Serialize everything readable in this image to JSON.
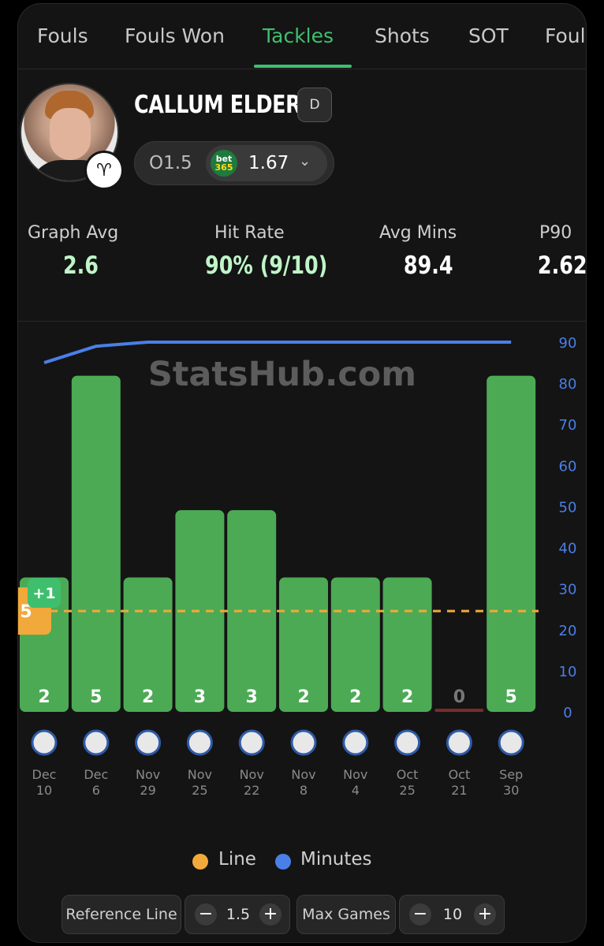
{
  "tabs": [
    {
      "label": "Fouls",
      "active": false
    },
    {
      "label": "Fouls Won",
      "active": false
    },
    {
      "label": "Tackles",
      "active": true
    },
    {
      "label": "Shots",
      "active": false
    },
    {
      "label": "SOT",
      "active": false
    },
    {
      "label": "Fouls Committed",
      "active": false
    }
  ],
  "player": {
    "name": "CALLUM ELDER",
    "position": "D",
    "avatar_icon": "player-photo",
    "club_icon": "ram-crest-icon"
  },
  "odds": {
    "line": "O1.5",
    "bookmaker_top": "bet",
    "bookmaker_bottom": "365",
    "price": "1.67",
    "dropdown_icon": "chevron-down-icon"
  },
  "stats": [
    {
      "label": "Graph Avg",
      "value": "2.6",
      "color": "#bff5c8"
    },
    {
      "label": "Hit Rate",
      "value": "90% (9/10)",
      "color": "#bff5c8"
    },
    {
      "label": "Avg Mins",
      "value": "89.4",
      "color": "#ffffff"
    },
    {
      "label": "P90",
      "value": "2.62",
      "color": "#ffffff"
    }
  ],
  "watermark": "StatsHub.com",
  "chart_data": {
    "type": "bar",
    "categories": [
      "Dec 10",
      "Dec 6",
      "Nov 29",
      "Nov 25",
      "Nov 22",
      "Nov 8",
      "Nov 4",
      "Oct 25",
      "Oct 21",
      "Sep 30"
    ],
    "series": [
      {
        "name": "Tackles",
        "values": [
          2,
          5,
          2,
          3,
          3,
          2,
          2,
          2,
          0,
          5
        ],
        "color": "#4caa55"
      },
      {
        "name": "Minutes",
        "values": [
          85,
          89,
          90,
          90,
          90,
          90,
          90,
          90,
          90,
          90
        ],
        "color": "#4a7fe8",
        "axis": "right"
      }
    ],
    "reference_line": {
      "name": "Line",
      "value": 1.5,
      "color": "#f2a93b"
    },
    "left_axis_label": "5",
    "right_axis": {
      "ticks": [
        90,
        80,
        70,
        60,
        50,
        40,
        30,
        20,
        10,
        0
      ],
      "ylim": [
        0,
        90
      ]
    },
    "tackles_ylim": [
      0,
      5.5
    ],
    "annotation": "+1",
    "team_icons": [
      "millwall-icon",
      "leicester-icon",
      "middlesbrough-icon",
      "swansea-icon",
      "watford-icon",
      "blackburn-icon",
      "hull-icon",
      "qpr-icon",
      "norwich-icon",
      "charlton-icon"
    ],
    "legend": [
      {
        "label": "Line",
        "color": "#f2a93b"
      },
      {
        "label": "Minutes",
        "color": "#4a7fe8"
      }
    ]
  },
  "controls": {
    "reference_label": "Reference Line",
    "reference_value": "1.5",
    "max_games_label": "Max Games",
    "max_games_value": "10",
    "minus": "−",
    "plus": "+"
  }
}
